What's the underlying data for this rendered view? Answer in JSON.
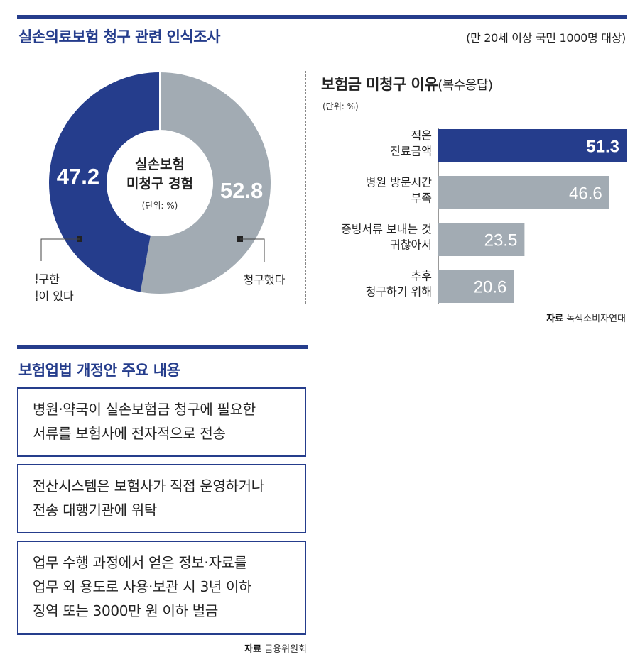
{
  "header": {
    "title": "실손의료보험 청구 관련 인식조사",
    "subtitle": "(만 20세 이상 국민 1000명 대상)"
  },
  "chart_data": [
    {
      "type": "pie",
      "variant": "donut",
      "center_label_lines": [
        "실손보험",
        "미청구 경험"
      ],
      "center_unit": "(단위: %)",
      "slices": [
        {
          "label_lines": [
            "청구했다"
          ],
          "value": 52.8,
          "value_label": "52.8",
          "color": "#a2abb3"
        },
        {
          "label_lines": [
            "미청구한",
            "경험이 있다"
          ],
          "value": 47.2,
          "value_label": "47.2",
          "color": "#253d8c"
        }
      ]
    },
    {
      "type": "bar",
      "orientation": "horizontal",
      "title": "보험금 미청구 이유",
      "title_suffix": "(복수응답)",
      "unit": "(단위: %)",
      "xlim": [
        0,
        51.3
      ],
      "categories": [
        [
          "적은",
          "진료금액"
        ],
        [
          "병원 방문시간",
          "부족"
        ],
        [
          "증빙서류 보내는 것",
          "귀찮아서"
        ],
        [
          "추후",
          "청구하기 위해"
        ]
      ],
      "values": [
        51.3,
        46.6,
        23.5,
        20.6
      ],
      "value_labels": [
        "51.3",
        "46.6",
        "23.5",
        "20.6"
      ],
      "bar_colors": [
        "#253d8c",
        "#a2abb3",
        "#a2abb3",
        "#a2abb3"
      ],
      "source_label": "자료",
      "source": "녹색소비자연대"
    }
  ],
  "amendment": {
    "title": "보험업법 개정안 주요 내용",
    "items": [
      [
        "병원·약국이 실손보험금 청구에 필요한",
        "서류를 보험사에 전자적으로 전송"
      ],
      [
        "전산시스템은 보험사가 직접 운영하거나",
        "전송 대행기관에 위탁"
      ],
      [
        "업무 수행 과정에서 얻은 정보·자료를",
        "업무 외 용도로 사용·보관 시 3년 이하",
        "징역 또는 3000만 원 이하 벌금"
      ]
    ],
    "source_label": "자료",
    "source": "금융위원회"
  }
}
